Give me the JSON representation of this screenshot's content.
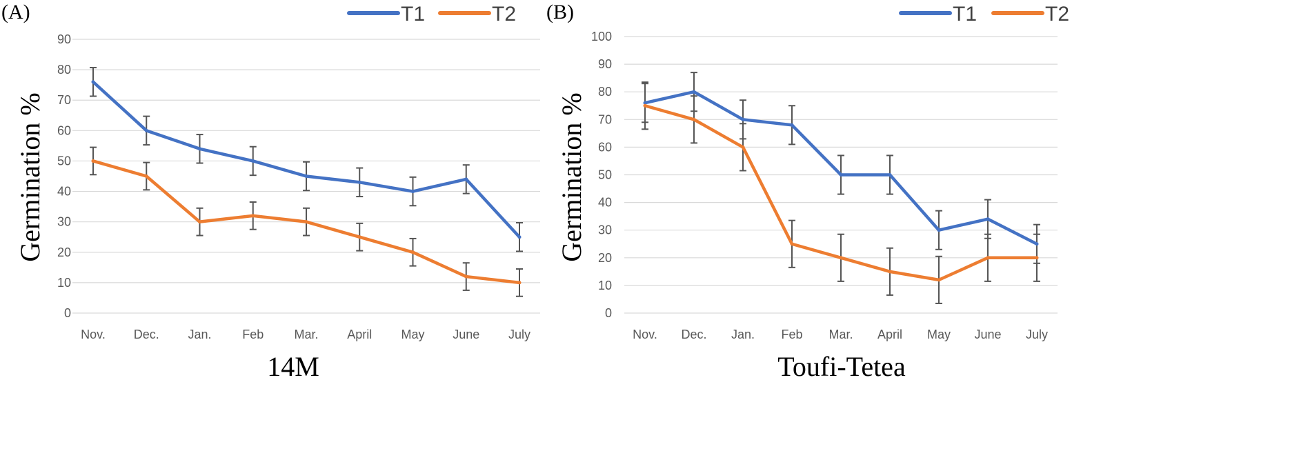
{
  "chart_data": [
    {
      "type": "line",
      "panel_label": "(A)",
      "xtitle": "14M",
      "ylabel": "Germination %",
      "categories": [
        "Nov.",
        "Dec.",
        "Jan.",
        "Feb",
        "Mar.",
        "April",
        "May",
        "June",
        "July"
      ],
      "ylim": [
        0,
        90
      ],
      "yticks": [
        "0",
        "10",
        "20",
        "30",
        "40",
        "50",
        "60",
        "70",
        "80",
        "90"
      ],
      "grid": true,
      "legend": "top-right",
      "series": [
        {
          "name": "T1",
          "color": "#4472c4",
          "values": [
            76,
            60,
            54,
            50,
            45,
            43,
            40,
            44,
            25
          ],
          "errors": [
            4.7,
            4.7,
            4.7,
            4.7,
            4.7,
            4.7,
            4.7,
            4.7,
            4.7
          ]
        },
        {
          "name": "T2",
          "color": "#ed7d31",
          "values": [
            50,
            45,
            30,
            32,
            30,
            25,
            20,
            12,
            10
          ],
          "errors": [
            4.5,
            4.5,
            4.5,
            4.5,
            4.5,
            4.5,
            4.5,
            4.5,
            4.5
          ]
        }
      ]
    },
    {
      "type": "line",
      "panel_label": "(B)",
      "xtitle": "Toufi-Tetea",
      "ylabel": "Germination %",
      "categories": [
        "Nov.",
        "Dec.",
        "Jan.",
        "Feb",
        "Mar.",
        "April",
        "May",
        "June",
        "July"
      ],
      "ylim": [
        0,
        100
      ],
      "yticks": [
        "0",
        "10",
        "20",
        "30",
        "40",
        "50",
        "60",
        "70",
        "80",
        "90",
        "100"
      ],
      "grid": true,
      "legend": "top-right",
      "series": [
        {
          "name": "T1",
          "color": "#4472c4",
          "values": [
            76,
            80,
            70,
            68,
            50,
            50,
            30,
            34,
            25
          ],
          "errors": [
            7,
            7,
            7,
            7,
            7,
            7,
            7,
            7,
            7
          ]
        },
        {
          "name": "T2",
          "color": "#ed7d31",
          "values": [
            75,
            70,
            60,
            25,
            20,
            15,
            12,
            20,
            20
          ],
          "errors": [
            8.5,
            8.5,
            8.5,
            8.5,
            8.5,
            8.5,
            8.5,
            8.5,
            8.5
          ]
        }
      ]
    }
  ]
}
